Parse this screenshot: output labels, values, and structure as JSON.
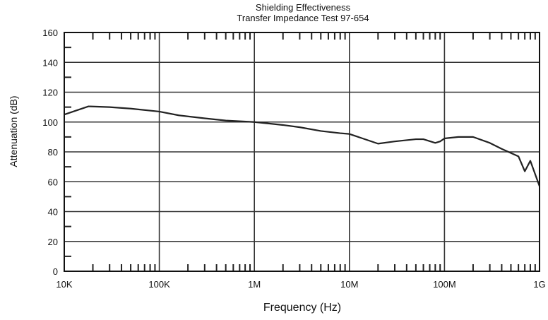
{
  "chart_data": {
    "type": "line",
    "title": "Shielding Effectiveness",
    "subtitle": "Transfer Impedance Test 97-654",
    "xlabel": "Frequency (Hz)",
    "ylabel": "Attenuation (dB)",
    "xscale": "log",
    "xlim": [
      10000,
      1000000000
    ],
    "ylim": [
      0,
      160
    ],
    "grid": true,
    "legend": "none",
    "x_ticks": [
      {
        "value": 10000,
        "label": "10K"
      },
      {
        "value": 100000,
        "label": "100K"
      },
      {
        "value": 1000000,
        "label": "1M"
      },
      {
        "value": 10000000,
        "label": "10M"
      },
      {
        "value": 100000000,
        "label": "100M"
      },
      {
        "value": 1000000000,
        "label": "1G"
      }
    ],
    "y_ticks": [
      {
        "value": 0,
        "label": "0"
      },
      {
        "value": 20,
        "label": "20"
      },
      {
        "value": 40,
        "label": "40"
      },
      {
        "value": 60,
        "label": "60"
      },
      {
        "value": 80,
        "label": "80"
      },
      {
        "value": 100,
        "label": "100"
      },
      {
        "value": 120,
        "label": "120"
      },
      {
        "value": 140,
        "label": "140"
      },
      {
        "value": 160,
        "label": "160"
      }
    ],
    "series": [
      {
        "color": "#222222",
        "x": [
          10000,
          18000,
          30000,
          50000,
          100000,
          160000,
          300000,
          500000,
          1000000,
          2000000,
          3000000,
          5000000,
          8000000,
          10000000,
          20000000,
          30000000,
          50000000,
          60000000,
          80000000,
          90000000,
          100000000,
          140000000,
          200000000,
          300000000,
          400000000,
          600000000,
          700000000,
          800000000,
          1000000000
        ],
        "y": [
          105,
          110.5,
          110,
          109,
          107,
          104.5,
          102.5,
          101,
          100,
          98,
          96.5,
          94,
          92.5,
          92,
          85.5,
          87,
          88.5,
          88.5,
          86,
          87,
          89,
          90,
          90,
          86,
          82,
          77,
          67,
          74,
          57
        ]
      }
    ]
  }
}
